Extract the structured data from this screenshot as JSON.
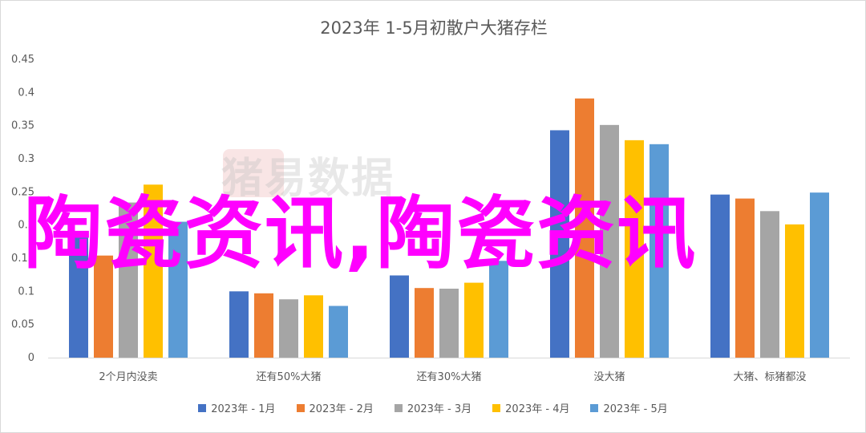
{
  "chart_data": {
    "type": "bar",
    "title": "2023年 1-5月初散户大猪存栏",
    "categories": [
      "2个月内没卖",
      "还有50%大猪",
      "还有30%大猪",
      "没大猪",
      "大猪、标猪都没"
    ],
    "series": [
      {
        "name": "2023年 - 1月",
        "color": "#4472c4",
        "values": [
          0.19,
          0.1,
          0.124,
          0.343,
          0.246
        ]
      },
      {
        "name": "2023年 - 2月",
        "color": "#ed7d31",
        "values": [
          0.154,
          0.097,
          0.105,
          0.391,
          0.24
        ]
      },
      {
        "name": "2023年 - 3月",
        "color": "#a5a5a5",
        "values": [
          0.234,
          0.088,
          0.104,
          0.351,
          0.221
        ]
      },
      {
        "name": "2023年 - 4月",
        "color": "#ffc000",
        "values": [
          0.261,
          0.094,
          0.113,
          0.328,
          0.201
        ]
      },
      {
        "name": "2023年 - 5月",
        "color": "#5b9bd5",
        "values": [
          0.205,
          0.078,
          0.146,
          0.322,
          0.249
        ]
      }
    ],
    "ylim": [
      0,
      0.45
    ],
    "yticks": [
      "0",
      "0.05",
      "0.1",
      "0.15",
      "0.2",
      "0.25",
      "0.3",
      "0.35",
      "0.4",
      "0.45"
    ],
    "grid": false,
    "legend_position": "bottom"
  },
  "watermark": "猪易数据",
  "overlay_text": "陶瓷资讯,陶瓷资讯"
}
